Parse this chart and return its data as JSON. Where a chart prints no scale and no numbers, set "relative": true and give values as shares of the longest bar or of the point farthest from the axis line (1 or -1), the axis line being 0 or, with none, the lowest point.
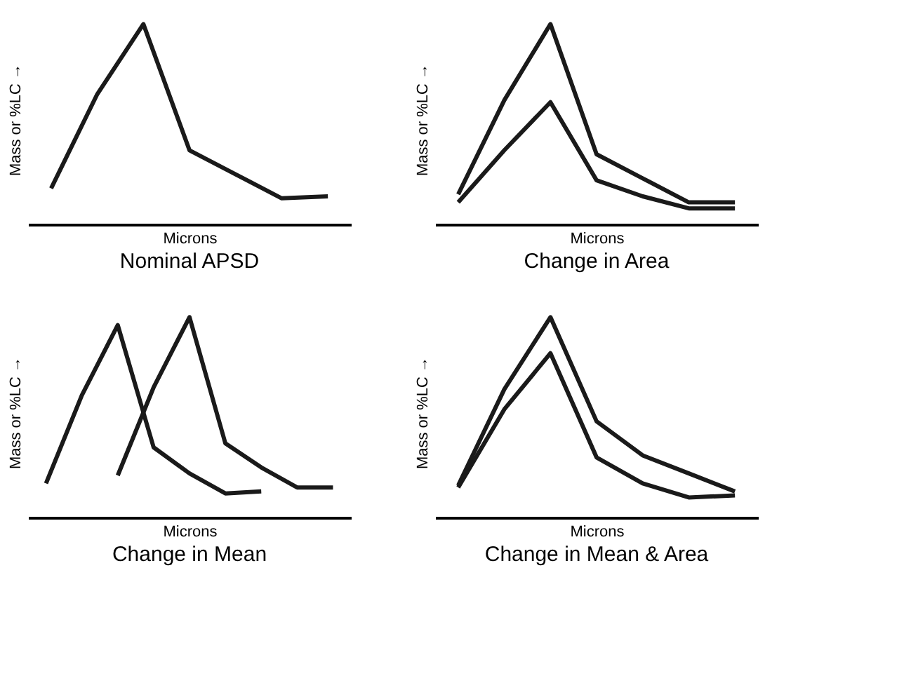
{
  "chart_data": [
    {
      "type": "line",
      "title": "Nominal APSD",
      "xlabel": "Microns",
      "ylabel": "Mass or %LC →",
      "relative": true,
      "tick_labels": false,
      "line_style": "solid",
      "categories": [
        null,
        null,
        null,
        null,
        null,
        null,
        null
      ],
      "series": [
        {
          "color": "#1a1a1a",
          "values": [
            0.18,
            0.65,
            1,
            0.37,
            0.25,
            0.13,
            0.14
          ]
        }
      ]
    },
    {
      "type": "line",
      "title": "Change in Area",
      "xlabel": "Microns",
      "ylabel": "Mass or %LC →",
      "relative": true,
      "tick_labels": false,
      "line_style": "solid",
      "categories": [
        null,
        null,
        null,
        null,
        null,
        null,
        null
      ],
      "series": [
        {
          "color": "#1a1a1a",
          "values": [
            0.15,
            0.62,
            1,
            0.35,
            0.23,
            0.11,
            0.11
          ]
        },
        {
          "color": "#1a1a1a",
          "values": [
            0.11,
            0.37,
            0.61,
            0.22,
            0.14,
            0.08,
            0.08
          ]
        }
      ]
    },
    {
      "type": "line",
      "title": "Change in Mean",
      "xlabel": "Microns",
      "ylabel": "Mass or %LC →",
      "relative": true,
      "tick_labels": false,
      "line_style": "solid",
      "categories": [
        null,
        null,
        null,
        null,
        null,
        null,
        null,
        null,
        null
      ],
      "series": [
        {
          "color": "#1a1a1a",
          "values": [
            0.17,
            0.61,
            0.96,
            0.35,
            0.22,
            0.12,
            0.13,
            null,
            null
          ]
        },
        {
          "color": "#1a1a1a",
          "values": [
            null,
            null,
            0.21,
            0.65,
            1,
            0.37,
            0.25,
            0.15,
            0.15
          ]
        }
      ]
    },
    {
      "type": "line",
      "title": "Change in Mean & Area",
      "xlabel": "Microns",
      "ylabel": "Mass or %LC →",
      "relative": true,
      "tick_labels": false,
      "line_style": "solid",
      "categories": [
        null,
        null,
        null,
        null,
        null,
        null,
        null
      ],
      "series": [
        {
          "color": "#1a1a1a",
          "values": [
            0.15,
            0.54,
            0.82,
            0.3,
            0.17,
            0.1,
            0.11
          ]
        },
        {
          "color": "#2a2a2a",
          "values": [
            0.16,
            0.64,
            1,
            0.48,
            0.31,
            0.22,
            0.13
          ]
        }
      ]
    }
  ]
}
